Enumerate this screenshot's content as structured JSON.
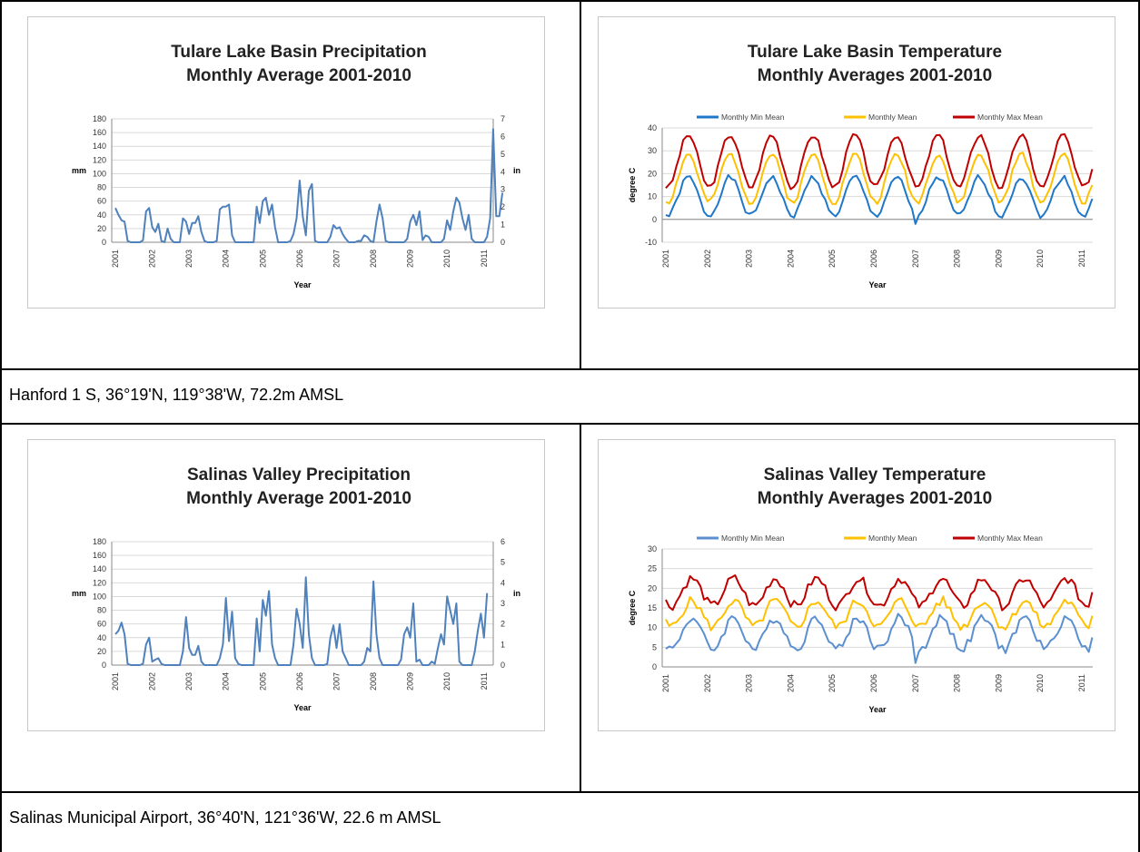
{
  "captions": {
    "row1": "Hanford 1 S, 36°19'N, 119°38'W, 72.2m AMSL",
    "row2": "Salinas Municipal Airport, 36°40'N, 121°36'W, 22.6 m AMSL"
  },
  "colors": {
    "precip": "#4f81bd",
    "min_tulare": "#1f77c8",
    "min_salinas": "#5b8fd0",
    "mean": "#ffc000",
    "max": "#c00000",
    "gridline": "#d9d9d9"
  },
  "chart_data": [
    {
      "id": "tulare-precip",
      "type": "line",
      "title": [
        "Tulare Lake Basin Precipitation",
        "Monthly Average 2001-2010"
      ],
      "xlabel": "Year",
      "ylabel": "mm",
      "y2label": "in",
      "ylim": [
        0,
        180
      ],
      "yticks": [
        0,
        20,
        40,
        60,
        80,
        100,
        120,
        140,
        160,
        180
      ],
      "y2ticks": [
        0,
        1,
        2,
        3,
        4,
        5,
        6,
        7
      ],
      "y2max": 7,
      "xticks": [
        "2001",
        "2002",
        "2003",
        "2004",
        "2005",
        "2006",
        "2007",
        "2008",
        "2009",
        "2010",
        "2011"
      ],
      "grid": true,
      "series": [
        {
          "color": "#4f81bd",
          "values": [
            50,
            40,
            32,
            30,
            2,
            0,
            0,
            0,
            0,
            3,
            45,
            50,
            22,
            15,
            27,
            2,
            0,
            20,
            5,
            0,
            0,
            0,
            35,
            30,
            12,
            28,
            28,
            38,
            15,
            2,
            0,
            0,
            0,
            2,
            48,
            52,
            52,
            55,
            10,
            0,
            0,
            0,
            0,
            0,
            0,
            0,
            52,
            28,
            60,
            65,
            40,
            55,
            22,
            0,
            0,
            0,
            0,
            2,
            12,
            35,
            90,
            38,
            10,
            75,
            85,
            2,
            0,
            0,
            0,
            0,
            8,
            25,
            20,
            22,
            12,
            5,
            0,
            0,
            0,
            2,
            2,
            10,
            8,
            2,
            0,
            30,
            55,
            35,
            2,
            0,
            0,
            0,
            0,
            0,
            0,
            5,
            30,
            40,
            25,
            45,
            3,
            10,
            8,
            0,
            0,
            0,
            0,
            5,
            32,
            18,
            45,
            65,
            58,
            35,
            18,
            40,
            5,
            0,
            0,
            0,
            0,
            8,
            35,
            165,
            38,
            38,
            72
          ]
        }
      ]
    },
    {
      "id": "tulare-temp",
      "type": "line",
      "title": [
        "Tulare Lake Basin Temperature",
        "Monthly Averages 2001-2010"
      ],
      "xlabel": "Year",
      "ylabel": "degree C",
      "ylim": [
        -10,
        40
      ],
      "yticks": [
        -10,
        0,
        10,
        20,
        30,
        40
      ],
      "xticks": [
        "2001",
        "2002",
        "2003",
        "2004",
        "2005",
        "2006",
        "2007",
        "2008",
        "2009",
        "2010",
        "2011"
      ],
      "grid": true,
      "legend": "top",
      "series": [
        {
          "name": "Monthly Min Mean",
          "color": "#1f77c8",
          "base": 10,
          "amp": 8.5,
          "phase": 6.5,
          "seed": 1,
          "final": 9,
          "dip": [
            72,
            -2
          ]
        },
        {
          "name": "Monthly Mean",
          "color": "#ffc000",
          "base": 18,
          "amp": 10.5,
          "phase": 6.5,
          "seed": 2,
          "final": 15
        },
        {
          "name": "Monthly Max Mean",
          "color": "#c00000",
          "base": 25.5,
          "amp": 11.5,
          "phase": 6.5,
          "seed": 3,
          "final": 22
        }
      ]
    },
    {
      "id": "salinas-precip",
      "type": "line",
      "title": [
        "Salinas Valley Precipitation",
        "Monthly Average 2001-2010"
      ],
      "xlabel": "Year",
      "ylabel": "mm",
      "y2label": "in",
      "ylim": [
        0,
        180
      ],
      "yticks": [
        0,
        20,
        40,
        60,
        80,
        100,
        120,
        140,
        160,
        180
      ],
      "y2ticks": [
        0,
        1,
        2,
        3,
        4,
        5,
        6
      ],
      "y2max": 6,
      "xticks": [
        "2001",
        "2002",
        "2003",
        "2004",
        "2005",
        "2006",
        "2007",
        "2008",
        "2009",
        "2010",
        "2011"
      ],
      "grid": true,
      "series": [
        {
          "color": "#4f81bd",
          "values": [
            45,
            50,
            62,
            45,
            2,
            0,
            0,
            0,
            0,
            2,
            30,
            40,
            5,
            8,
            10,
            2,
            0,
            0,
            0,
            0,
            0,
            0,
            20,
            70,
            25,
            15,
            15,
            28,
            5,
            0,
            0,
            0,
            0,
            0,
            10,
            30,
            98,
            35,
            78,
            10,
            2,
            0,
            0,
            0,
            0,
            0,
            68,
            20,
            95,
            72,
            108,
            30,
            10,
            0,
            0,
            0,
            0,
            0,
            30,
            82,
            60,
            25,
            128,
            45,
            10,
            0,
            0,
            0,
            0,
            2,
            40,
            58,
            25,
            60,
            20,
            10,
            0,
            0,
            0,
            0,
            0,
            5,
            25,
            20,
            122,
            45,
            10,
            0,
            0,
            0,
            0,
            0,
            0,
            8,
            45,
            55,
            40,
            90,
            5,
            8,
            0,
            0,
            0,
            5,
            2,
            25,
            45,
            30,
            100,
            80,
            60,
            90,
            5,
            0,
            0,
            0,
            0,
            20,
            50,
            75,
            40,
            105
          ]
        }
      ]
    },
    {
      "id": "salinas-temp",
      "type": "line",
      "title": [
        "Salinas Valley Temperature",
        "Monthly Averages 2001-2010"
      ],
      "xlabel": "Year",
      "ylabel": "degree C",
      "ylim": [
        0,
        30
      ],
      "yticks": [
        0,
        5,
        10,
        15,
        20,
        25,
        30
      ],
      "xticks": [
        "2001",
        "2002",
        "2003",
        "2004",
        "2005",
        "2006",
        "2007",
        "2008",
        "2009",
        "2010",
        "2011"
      ],
      "grid": true,
      "legend": "top",
      "series": [
        {
          "name": "Monthly Min Mean",
          "color": "#5b8fd0",
          "base": 8.5,
          "amp": 4,
          "phase": 7.5,
          "seed": 4,
          "final": 7.5,
          "dip": [
            72,
            1
          ]
        },
        {
          "name": "Monthly Mean",
          "color": "#ffc000",
          "base": 13.5,
          "amp": 3.3,
          "phase": 7.5,
          "seed": 5,
          "final": 13
        },
        {
          "name": "Monthly Max Mean",
          "color": "#c00000",
          "base": 19,
          "amp": 3.5,
          "phase": 7.5,
          "seed": 6,
          "final": 19
        }
      ]
    }
  ]
}
